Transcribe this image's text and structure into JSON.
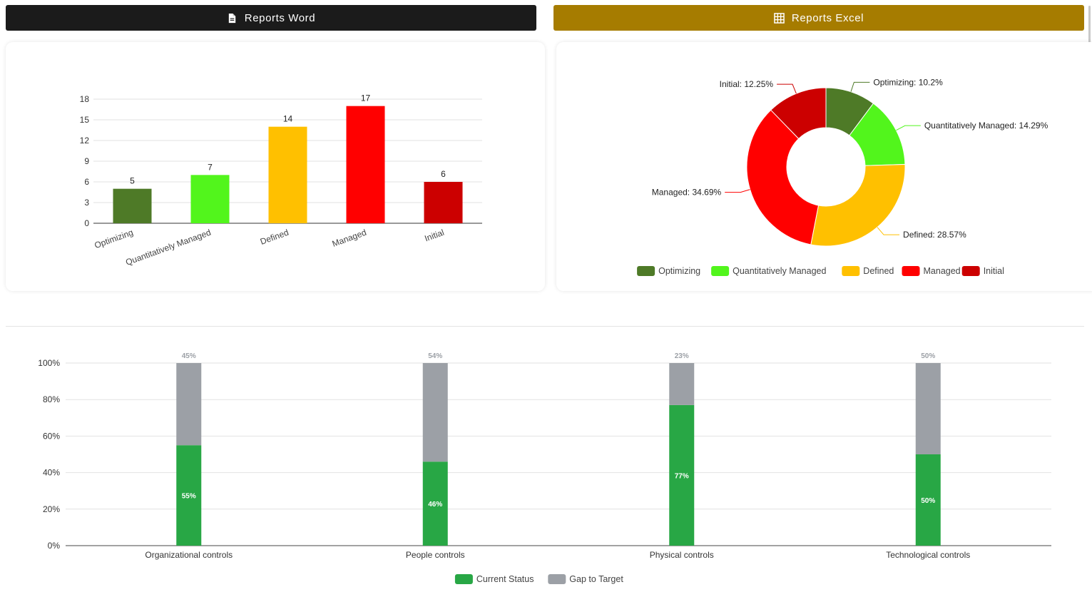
{
  "header": {
    "word_button": {
      "label": "Reports Word",
      "icon": "document-icon"
    },
    "excel_button": {
      "label": "Reports Excel",
      "icon": "table-grid-icon"
    }
  },
  "colors": {
    "word_button": "#1b1b1b",
    "excel_button": "#a67c00",
    "Optimizing": "#4e7a27",
    "Quantitatively Managed": "#52f51c",
    "Defined": "#ffc000",
    "Managed": "#ff0000",
    "Initial": "#cc0000",
    "current_status": "#28a745",
    "gap_to_target": "#9ca0a6"
  },
  "chart_data": [
    {
      "type": "bar",
      "categories": [
        "Optimizing",
        "Quantitatively Managed",
        "Defined",
        "Managed",
        "Initial"
      ],
      "values": [
        5,
        7,
        14,
        17,
        6
      ],
      "ylim": [
        0,
        18
      ],
      "yticks": [
        0,
        3,
        6,
        9,
        12,
        15,
        18
      ],
      "grid": true,
      "data_labels": true,
      "xtick_rotation": "rotated"
    },
    {
      "type": "pie",
      "variant": "donut",
      "labels": [
        "Optimizing",
        "Quantitatively Managed",
        "Defined",
        "Managed",
        "Initial"
      ],
      "values": [
        10.2,
        14.29,
        28.57,
        34.69,
        12.25
      ],
      "slice_labels": [
        "Optimizing: 10.2%",
        "Quantitatively Managed: 14.29%",
        "Defined: 28.57%",
        "Managed: 34.69%",
        "Initial: 12.25%"
      ],
      "legend": [
        "Optimizing",
        "Quantitatively Managed",
        "Defined",
        "Managed",
        "Initial"
      ],
      "legend_position": "bottom"
    },
    {
      "type": "bar",
      "variant": "stacked-100",
      "categories": [
        "Organizational controls",
        "People controls",
        "Physical controls",
        "Technological controls"
      ],
      "series": [
        {
          "name": "Current Status",
          "values": [
            55,
            46,
            77,
            50
          ],
          "labels": [
            "55%",
            "46%",
            "77%",
            "50%"
          ]
        },
        {
          "name": "Gap to Target",
          "values": [
            45,
            54,
            23,
            50
          ],
          "labels": [
            "45%",
            "54%",
            "23%",
            "50%"
          ]
        }
      ],
      "ylim": [
        0,
        100
      ],
      "yticks": [
        "0%",
        "20%",
        "40%",
        "60%",
        "80%",
        "100%"
      ],
      "grid": true,
      "legend": [
        "Current Status",
        "Gap to Target"
      ],
      "legend_position": "bottom"
    }
  ]
}
